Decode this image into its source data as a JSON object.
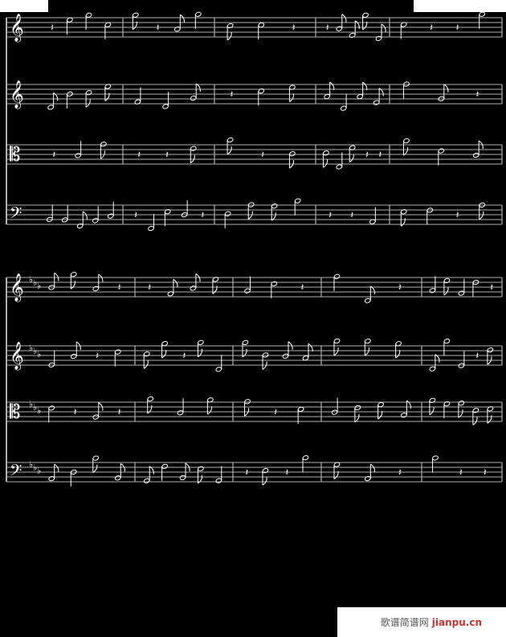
{
  "colors": {
    "background": "#000000",
    "staff": "#b0b0b0",
    "notes": "#ffffff",
    "accent_note": "#3355cc"
  },
  "watermark": {
    "chinese": "歌谱简谱网",
    "site": "jianpu.cn"
  },
  "systems": [
    {
      "clefs": [
        "treble-clef-icon",
        "treble-clef-icon",
        "alto-clef-icon",
        "bass-clef-icon"
      ],
      "key_signature": "",
      "measures": 5
    },
    {
      "clefs": [
        "treble-clef-icon",
        "treble-clef-icon",
        "alto-clef-icon",
        "bass-clef-icon"
      ],
      "key_signature": "three-flats",
      "measures": 5
    }
  ]
}
